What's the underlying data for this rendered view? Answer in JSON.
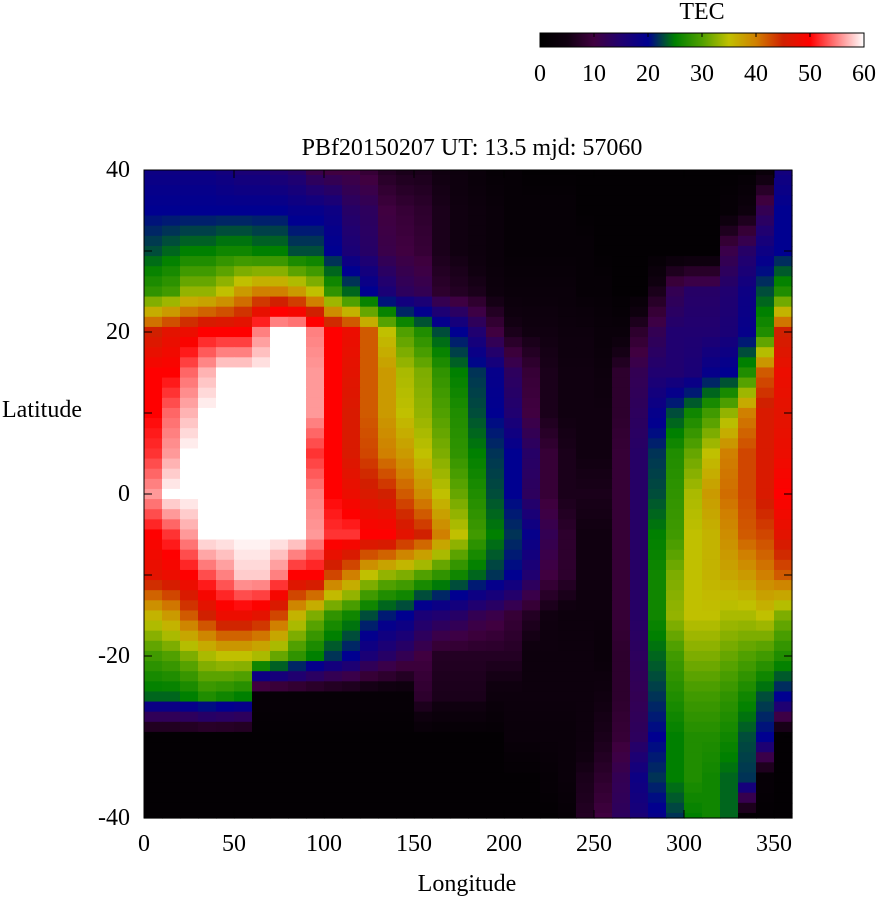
{
  "chart_data": {
    "type": "heatmap",
    "title": "PBf20150207  UT: 13.5  mjd: 57060",
    "xlabel": "Longitude",
    "ylabel": "Latitude",
    "xlim": [
      0,
      360
    ],
    "ylim": [
      -40,
      40
    ],
    "xticks": [
      "0",
      "50",
      "100",
      "150",
      "200",
      "250",
      "300",
      "350"
    ],
    "yticks": [
      "40",
      "20",
      "0",
      "-20",
      "-40"
    ],
    "colorbar": {
      "label": "TEC",
      "range": [
        0,
        60
      ],
      "ticks": [
        "0",
        "10",
        "20",
        "30",
        "40",
        "50",
        "60"
      ],
      "colors": [
        "#000000",
        "#100010",
        "#400040",
        "#200070",
        "#000090",
        "#008000",
        "#50a000",
        "#c0c000",
        "#d08000",
        "#d02000",
        "#ff0000",
        "#ff8080",
        "#ffffff"
      ]
    },
    "lon": [
      0,
      10,
      20,
      30,
      40,
      50,
      60,
      70,
      80,
      90,
      100,
      110,
      120,
      130,
      140,
      150,
      160,
      170,
      180,
      190,
      200,
      210,
      220,
      230,
      240,
      250,
      260,
      270,
      280,
      290,
      300,
      310,
      320,
      330,
      340,
      350
    ],
    "lat": [
      40,
      35,
      30,
      25,
      20,
      15,
      10,
      5,
      0,
      -5,
      -10,
      -15,
      -20,
      -25,
      -30,
      -35,
      -40
    ],
    "values": [
      [
        18,
        18,
        18,
        18,
        17,
        16,
        16,
        15,
        14,
        11,
        10,
        10,
        9,
        7,
        6,
        6,
        5,
        4,
        3,
        2,
        2,
        1,
        1,
        1,
        1,
        1,
        1,
        1,
        1,
        1,
        1,
        1,
        1,
        1,
        3,
        17
      ],
      [
        20,
        20,
        20,
        20,
        20,
        20,
        20,
        20,
        19,
        19,
        18,
        14,
        13,
        10,
        9,
        8,
        6,
        5,
        4,
        3,
        2,
        2,
        2,
        2,
        1,
        1,
        1,
        1,
        1,
        1,
        1,
        1,
        2,
        4,
        12,
        20
      ],
      [
        23,
        24,
        25,
        25,
        26,
        26,
        25,
        25,
        23,
        23,
        20,
        16,
        14,
        11,
        10,
        9,
        6,
        5,
        4,
        3,
        2,
        2,
        2,
        2,
        2,
        1,
        1,
        1,
        1,
        1,
        1,
        1,
        11,
        14,
        18,
        20
      ],
      [
        28,
        29,
        33,
        33,
        35,
        38,
        40,
        40,
        38,
        35,
        28,
        24,
        20,
        16,
        13,
        12,
        8,
        7,
        6,
        4,
        3,
        3,
        3,
        3,
        2,
        2,
        1,
        1,
        6,
        12,
        14,
        14,
        15,
        18,
        23,
        27
      ],
      [
        45,
        47,
        48,
        50,
        50,
        50,
        55,
        60,
        60,
        55,
        50,
        48,
        42,
        35,
        30,
        27,
        23,
        20,
        15,
        10,
        6,
        5,
        5,
        4,
        4,
        3,
        3,
        8,
        12,
        15,
        15,
        15,
        16,
        19,
        27,
        45
      ],
      [
        50,
        50,
        54,
        57,
        60,
        60,
        60,
        60,
        60,
        56,
        50,
        47,
        42,
        38,
        34,
        32,
        28,
        25,
        22,
        19,
        13,
        9,
        6,
        5,
        5,
        4,
        8,
        12,
        15,
        15,
        16,
        19,
        20,
        27,
        42,
        48
      ],
      [
        50,
        54,
        57,
        60,
        60,
        60,
        60,
        60,
        60,
        56,
        50,
        46,
        42,
        38,
        35,
        33,
        30,
        27,
        23,
        20,
        15,
        10,
        6,
        5,
        5,
        5,
        8,
        13,
        19,
        23,
        26,
        29,
        33,
        40,
        46,
        47
      ],
      [
        52,
        56,
        60,
        60,
        60,
        60,
        60,
        60,
        60,
        52,
        50,
        46,
        43,
        40,
        38,
        35,
        32,
        28,
        25,
        22,
        20,
        14,
        9,
        6,
        5,
        5,
        9,
        14,
        22,
        27,
        31,
        35,
        40,
        43,
        46,
        48
      ],
      [
        56,
        60,
        60,
        60,
        60,
        60,
        60,
        60,
        60,
        55,
        50,
        48,
        46,
        45,
        42,
        39,
        35,
        31,
        27,
        23,
        20,
        13,
        9,
        6,
        6,
        6,
        9,
        14,
        23,
        28,
        34,
        38,
        41,
        43,
        46,
        50
      ],
      [
        50,
        52,
        56,
        60,
        60,
        60,
        60,
        60,
        60,
        56,
        52,
        52,
        50,
        50,
        47,
        45,
        40,
        35,
        29,
        25,
        22,
        19,
        12,
        8,
        5,
        5,
        9,
        14,
        25,
        29,
        35,
        36,
        39,
        42,
        43,
        47
      ],
      [
        47,
        48,
        50,
        53,
        55,
        58,
        58,
        55,
        50,
        50,
        43,
        40,
        35,
        33,
        32,
        30,
        28,
        26,
        24,
        22,
        20,
        15,
        10,
        8,
        5,
        5,
        9,
        14,
        26,
        32,
        35,
        36,
        37,
        38,
        40,
        42
      ],
      [
        36,
        38,
        42,
        45,
        48,
        48,
        47,
        43,
        36,
        32,
        28,
        26,
        23,
        21,
        20,
        16,
        15,
        14,
        12,
        11,
        9,
        7,
        5,
        4,
        4,
        4,
        9,
        14,
        26,
        33,
        35,
        35,
        34,
        34,
        35,
        32
      ],
      [
        29,
        30,
        32,
        34,
        35,
        35,
        34,
        31,
        28,
        25,
        22,
        20,
        16,
        14,
        12,
        10,
        7,
        7,
        7,
        7,
        7,
        4,
        4,
        4,
        4,
        3,
        8,
        13,
        24,
        29,
        32,
        32,
        31,
        30,
        29,
        27
      ],
      [
        24,
        24,
        25,
        27,
        26,
        25,
        2,
        2,
        2,
        2,
        2,
        2,
        2,
        2,
        2,
        8,
        6,
        6,
        6,
        4,
        4,
        4,
        4,
        4,
        4,
        5,
        8,
        12,
        22,
        27,
        29,
        29,
        28,
        26,
        23,
        20
      ],
      [
        1,
        1,
        1,
        1,
        1,
        1,
        1,
        1,
        1,
        1,
        1,
        1,
        1,
        1,
        1,
        1,
        1,
        1,
        1,
        1,
        3,
        3,
        3,
        3,
        4,
        6,
        9,
        13,
        20,
        25,
        27,
        27,
        26,
        23,
        20,
        1
      ],
      [
        1,
        1,
        1,
        1,
        1,
        1,
        1,
        1,
        1,
        1,
        1,
        1,
        1,
        1,
        1,
        1,
        1,
        1,
        1,
        1,
        1,
        1,
        2,
        3,
        6,
        8,
        12,
        18,
        22,
        25,
        27,
        26,
        24,
        22,
        2,
        1
      ],
      [
        1,
        1,
        1,
        1,
        1,
        1,
        1,
        1,
        1,
        1,
        1,
        1,
        1,
        1,
        1,
        1,
        1,
        1,
        1,
        1,
        1,
        1,
        1,
        2,
        7,
        10,
        13,
        16,
        19,
        22,
        25,
        26,
        24,
        1,
        1,
        1
      ]
    ]
  }
}
